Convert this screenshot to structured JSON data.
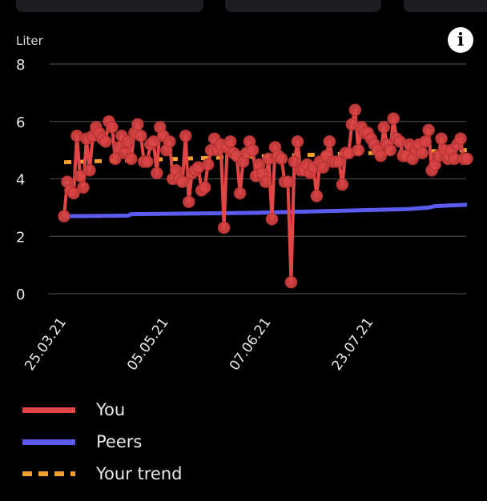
{
  "top_cards": [
    "",
    "",
    ""
  ],
  "info_icon": "info-icon",
  "chart_data": {
    "type": "line",
    "ylabel": "Liter",
    "ylim": [
      0,
      8
    ],
    "yticks": [
      0,
      2,
      4,
      6,
      8
    ],
    "grid": true,
    "x_tick_labels": [
      {
        "index": 0,
        "label": "25.03.21"
      },
      {
        "index": 32,
        "label": "05.05.21"
      },
      {
        "index": 64,
        "label": "07.06.21"
      },
      {
        "index": 96,
        "label": "23.07.21"
      }
    ],
    "legend_placement": "bottom",
    "series": [
      {
        "name": "You",
        "color": "#e04646",
        "style": "line-markers",
        "values": [
          2.7,
          3.9,
          3.6,
          3.5,
          5.5,
          4.1,
          3.7,
          5.4,
          4.3,
          5.5,
          5.8,
          5.6,
          5.4,
          5.3,
          6.0,
          5.8,
          4.7,
          5.1,
          5.5,
          4.9,
          5.3,
          4.7,
          5.6,
          5.9,
          5.5,
          4.6,
          4.6,
          5.2,
          5.3,
          4.2,
          5.8,
          5.5,
          5.0,
          5.3,
          4.0,
          4.3,
          4.0,
          3.9,
          5.5,
          3.2,
          4.2,
          4.3,
          4.4,
          3.6,
          3.7,
          4.5,
          5.0,
          5.4,
          5.0,
          5.2,
          2.3,
          5.1,
          5.3,
          4.9,
          4.8,
          3.5,
          4.6,
          4.9,
          5.3,
          5.0,
          4.1,
          4.5,
          4.2,
          3.9,
          4.7,
          2.6,
          5.1,
          4.8,
          4.7,
          3.9,
          3.9,
          0.4,
          4.6,
          5.3,
          4.3,
          4.3,
          4.5,
          4.2,
          4.4,
          3.4,
          4.6,
          4.4,
          4.8,
          5.3,
          4.6,
          4.6,
          4.6,
          3.8,
          4.9,
          4.9,
          5.9,
          6.4,
          5.0,
          5.8,
          5.6,
          5.6,
          5.4,
          5.2,
          5.0,
          4.8,
          5.8,
          5.2,
          5.0,
          6.1,
          5.4,
          5.3,
          4.8,
          4.8,
          5.2,
          4.7,
          5.0,
          5.2,
          4.9,
          5.3,
          5.7,
          4.3,
          4.5,
          4.8,
          5.4,
          5.0,
          4.7,
          5.0,
          4.7,
          5.2,
          5.4,
          4.7,
          4.7
        ]
      },
      {
        "name": "Peers",
        "color": "#5b5bf0",
        "style": "line",
        "points": [
          [
            0,
            2.7
          ],
          [
            20,
            2.72
          ],
          [
            21,
            2.77
          ],
          [
            60,
            2.82
          ],
          [
            90,
            2.9
          ],
          [
            108,
            2.95
          ],
          [
            114,
            3.0
          ],
          [
            116,
            3.05
          ],
          [
            126,
            3.1
          ]
        ]
      },
      {
        "name": "Your trend",
        "color": "#f0a030",
        "style": "dashed",
        "points": [
          [
            0,
            4.58
          ],
          [
            126,
            5.0
          ]
        ]
      }
    ]
  }
}
